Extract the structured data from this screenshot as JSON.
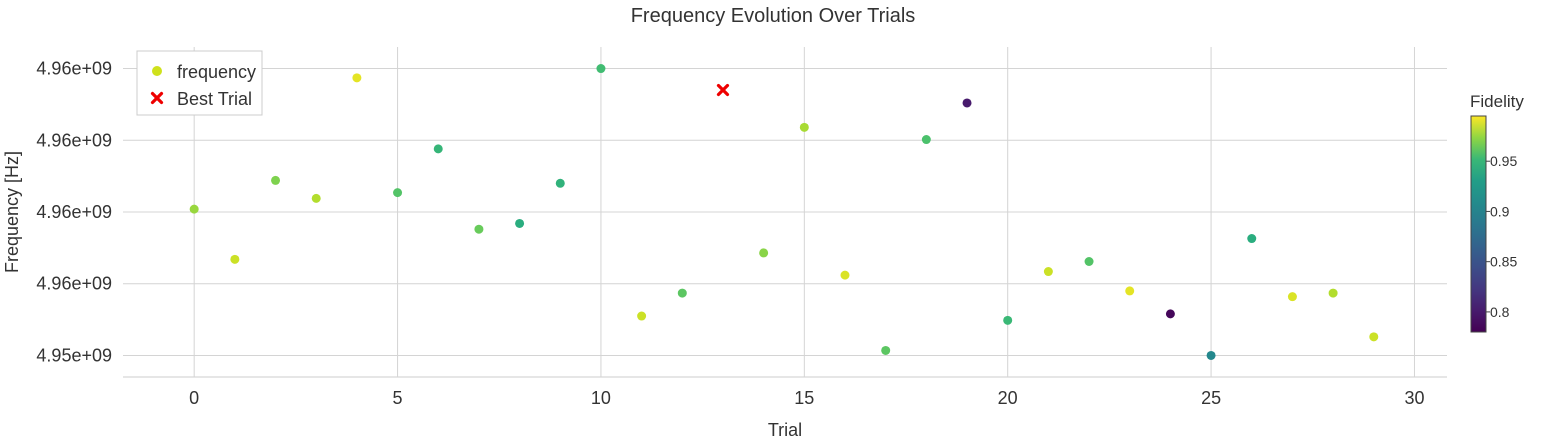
{
  "chart_data": {
    "type": "scatter",
    "title": "Frequency Evolution Over Trials",
    "xlabel": "Trial",
    "ylabel": "Frequency [Hz]",
    "xlim": [
      -1.75,
      30.8
    ],
    "ylim": [
      -0.3,
      4.3
    ],
    "x_ticks": [
      0,
      5,
      10,
      15,
      20,
      25,
      30
    ],
    "y_ticks": [
      {
        "value": 0,
        "label": "4.95e+09"
      },
      {
        "value": 1,
        "label": "4.96e+09"
      },
      {
        "value": 2,
        "label": "4.96e+09"
      },
      {
        "value": 3,
        "label": "4.96e+09"
      },
      {
        "value": 4,
        "label": "4.96e+09"
      }
    ],
    "grid": true,
    "legend": {
      "position": "top-left",
      "entries": [
        {
          "label": "frequency",
          "marker": "circle",
          "color": "#cfe11c"
        },
        {
          "label": "Best Trial",
          "marker": "x",
          "color": "#ee0000"
        }
      ]
    },
    "colorbar": {
      "title": "Fidelity",
      "range": [
        0.78,
        0.995
      ],
      "ticks": [
        0.8,
        0.85,
        0.9,
        0.95
      ],
      "tick_labels": [
        "0.8",
        "0.85",
        "0.9",
        "0.95"
      ],
      "colormap": "viridis"
    },
    "series": [
      {
        "name": "frequency",
        "points": [
          {
            "x": 0,
            "y": 2.04,
            "fidelity": 0.975
          },
          {
            "x": 1,
            "y": 1.34,
            "fidelity": 0.985
          },
          {
            "x": 2,
            "y": 2.44,
            "fidelity": 0.97
          },
          {
            "x": 3,
            "y": 2.19,
            "fidelity": 0.98
          },
          {
            "x": 4,
            "y": 3.87,
            "fidelity": 0.99
          },
          {
            "x": 5,
            "y": 2.27,
            "fidelity": 0.96
          },
          {
            "x": 6,
            "y": 2.88,
            "fidelity": 0.95
          },
          {
            "x": 7,
            "y": 1.76,
            "fidelity": 0.965
          },
          {
            "x": 8,
            "y": 1.84,
            "fidelity": 0.945
          },
          {
            "x": 9,
            "y": 2.4,
            "fidelity": 0.948
          },
          {
            "x": 10,
            "y": 4.0,
            "fidelity": 0.955
          },
          {
            "x": 11,
            "y": 0.55,
            "fidelity": 0.985
          },
          {
            "x": 12,
            "y": 0.87,
            "fidelity": 0.962
          },
          {
            "x": 14,
            "y": 1.43,
            "fidelity": 0.972
          },
          {
            "x": 15,
            "y": 3.18,
            "fidelity": 0.978
          },
          {
            "x": 16,
            "y": 1.12,
            "fidelity": 0.988
          },
          {
            "x": 17,
            "y": 0.07,
            "fidelity": 0.962
          },
          {
            "x": 18,
            "y": 3.01,
            "fidelity": 0.958
          },
          {
            "x": 19,
            "y": 3.52,
            "fidelity": 0.8
          },
          {
            "x": 20,
            "y": 0.49,
            "fidelity": 0.952
          },
          {
            "x": 21,
            "y": 1.17,
            "fidelity": 0.985
          },
          {
            "x": 22,
            "y": 1.31,
            "fidelity": 0.96
          },
          {
            "x": 23,
            "y": 0.9,
            "fidelity": 0.99
          },
          {
            "x": 24,
            "y": 0.58,
            "fidelity": 0.785
          },
          {
            "x": 25,
            "y": 0.0,
            "fidelity": 0.905
          },
          {
            "x": 26,
            "y": 1.63,
            "fidelity": 0.945
          },
          {
            "x": 27,
            "y": 0.82,
            "fidelity": 0.988
          },
          {
            "x": 28,
            "y": 0.87,
            "fidelity": 0.98
          },
          {
            "x": 29,
            "y": 0.26,
            "fidelity": 0.985
          }
        ]
      },
      {
        "name": "Best Trial",
        "points": [
          {
            "x": 13,
            "y": 3.7
          }
        ]
      }
    ]
  }
}
